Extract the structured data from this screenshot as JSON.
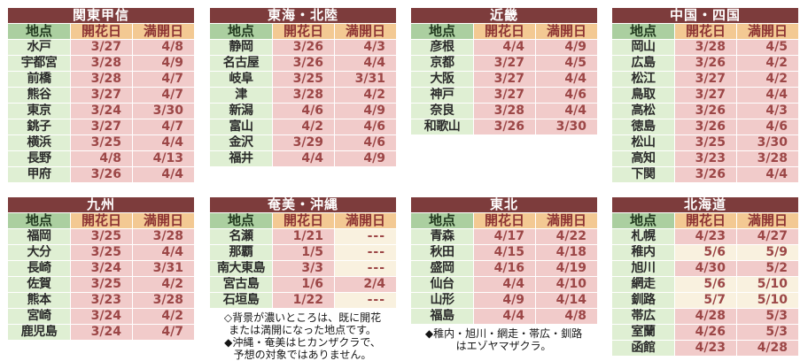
{
  "columns": {
    "location": "地点",
    "flowering": "開花日",
    "full_bloom": "満開日"
  },
  "colors": {
    "region_header_bg": "#7D3C3C",
    "region_header_text": "#FFFFFF",
    "location_header_bg": "#ABCFA0",
    "location_header_text": "#22391F",
    "date_header_bg": "#F3C993",
    "date_header_text": "#8C3333",
    "location_cell_bg": "#DFEFD3",
    "occurred_cell_bg": "#F1CBCA",
    "forecast_cell_bg": "#F9F1DF",
    "date_text": "#9C4747"
  },
  "cell_state_legend": {
    "occurred": "darker pink background = 既に開花または満開になった地点",
    "forecast": "light cream background = forecast date or no data"
  },
  "chart_data": [
    {
      "type": "table",
      "id": "kanto-koshin",
      "title": "関東甲信",
      "grid_position": {
        "row": 1,
        "col": 1
      },
      "columns": [
        "地点",
        "開花日",
        "満開日"
      ],
      "rows": [
        {
          "location": "水戸",
          "flowering": "3/27",
          "full_bloom": "4/8",
          "flowering_state": "occurred",
          "full_bloom_state": "occurred"
        },
        {
          "location": "宇都宮",
          "flowering": "3/28",
          "full_bloom": "4/9",
          "flowering_state": "occurred",
          "full_bloom_state": "occurred"
        },
        {
          "location": "前橋",
          "flowering": "3/28",
          "full_bloom": "4/7",
          "flowering_state": "occurred",
          "full_bloom_state": "occurred"
        },
        {
          "location": "熊谷",
          "flowering": "3/27",
          "full_bloom": "4/7",
          "flowering_state": "occurred",
          "full_bloom_state": "occurred"
        },
        {
          "location": "東京",
          "flowering": "3/24",
          "full_bloom": "3/30",
          "flowering_state": "occurred",
          "full_bloom_state": "occurred"
        },
        {
          "location": "銚子",
          "flowering": "3/27",
          "full_bloom": "4/7",
          "flowering_state": "occurred",
          "full_bloom_state": "occurred"
        },
        {
          "location": "横浜",
          "flowering": "3/25",
          "full_bloom": "4/4",
          "flowering_state": "occurred",
          "full_bloom_state": "occurred"
        },
        {
          "location": "長野",
          "flowering": "4/8",
          "full_bloom": "4/13",
          "flowering_state": "occurred",
          "full_bloom_state": "occurred"
        },
        {
          "location": "甲府",
          "flowering": "3/26",
          "full_bloom": "4/4",
          "flowering_state": "occurred",
          "full_bloom_state": "occurred"
        }
      ],
      "notes": []
    },
    {
      "type": "table",
      "id": "tokai-hokuriku",
      "title": "東海・北陸",
      "grid_position": {
        "row": 1,
        "col": 2
      },
      "columns": [
        "地点",
        "開花日",
        "満開日"
      ],
      "rows": [
        {
          "location": "静岡",
          "flowering": "3/26",
          "full_bloom": "4/3",
          "flowering_state": "occurred",
          "full_bloom_state": "occurred"
        },
        {
          "location": "名古屋",
          "flowering": "3/26",
          "full_bloom": "4/4",
          "flowering_state": "occurred",
          "full_bloom_state": "occurred"
        },
        {
          "location": "岐阜",
          "flowering": "3/25",
          "full_bloom": "3/31",
          "flowering_state": "occurred",
          "full_bloom_state": "occurred"
        },
        {
          "location": "津",
          "flowering": "3/28",
          "full_bloom": "4/2",
          "flowering_state": "occurred",
          "full_bloom_state": "occurred"
        },
        {
          "location": "新潟",
          "flowering": "4/6",
          "full_bloom": "4/9",
          "flowering_state": "occurred",
          "full_bloom_state": "occurred"
        },
        {
          "location": "富山",
          "flowering": "4/2",
          "full_bloom": "4/6",
          "flowering_state": "occurred",
          "full_bloom_state": "occurred"
        },
        {
          "location": "金沢",
          "flowering": "3/29",
          "full_bloom": "4/6",
          "flowering_state": "occurred",
          "full_bloom_state": "occurred"
        },
        {
          "location": "福井",
          "flowering": "4/4",
          "full_bloom": "4/9",
          "flowering_state": "occurred",
          "full_bloom_state": "occurred"
        }
      ],
      "notes": []
    },
    {
      "type": "table",
      "id": "kinki",
      "title": "近畿",
      "grid_position": {
        "row": 1,
        "col": 3
      },
      "columns": [
        "地点",
        "開花日",
        "満開日"
      ],
      "rows": [
        {
          "location": "彦根",
          "flowering": "4/4",
          "full_bloom": "4/9",
          "flowering_state": "occurred",
          "full_bloom_state": "occurred"
        },
        {
          "location": "京都",
          "flowering": "3/27",
          "full_bloom": "4/5",
          "flowering_state": "occurred",
          "full_bloom_state": "occurred"
        },
        {
          "location": "大阪",
          "flowering": "3/27",
          "full_bloom": "4/4",
          "flowering_state": "occurred",
          "full_bloom_state": "occurred"
        },
        {
          "location": "神戸",
          "flowering": "3/27",
          "full_bloom": "4/6",
          "flowering_state": "occurred",
          "full_bloom_state": "occurred"
        },
        {
          "location": "奈良",
          "flowering": "3/28",
          "full_bloom": "4/4",
          "flowering_state": "occurred",
          "full_bloom_state": "occurred"
        },
        {
          "location": "和歌山",
          "flowering": "3/26",
          "full_bloom": "3/30",
          "flowering_state": "occurred",
          "full_bloom_state": "occurred"
        }
      ],
      "notes": []
    },
    {
      "type": "table",
      "id": "chugoku-shikoku",
      "title": "中国・四国",
      "grid_position": {
        "row": 1,
        "col": 4
      },
      "columns": [
        "地点",
        "開花日",
        "満開日"
      ],
      "rows": [
        {
          "location": "岡山",
          "flowering": "3/28",
          "full_bloom": "4/5",
          "flowering_state": "occurred",
          "full_bloom_state": "occurred"
        },
        {
          "location": "広島",
          "flowering": "3/26",
          "full_bloom": "4/2",
          "flowering_state": "occurred",
          "full_bloom_state": "occurred"
        },
        {
          "location": "松江",
          "flowering": "3/27",
          "full_bloom": "4/2",
          "flowering_state": "occurred",
          "full_bloom_state": "occurred"
        },
        {
          "location": "鳥取",
          "flowering": "3/27",
          "full_bloom": "4/4",
          "flowering_state": "occurred",
          "full_bloom_state": "occurred"
        },
        {
          "location": "高松",
          "flowering": "3/26",
          "full_bloom": "4/3",
          "flowering_state": "occurred",
          "full_bloom_state": "occurred"
        },
        {
          "location": "徳島",
          "flowering": "3/26",
          "full_bloom": "4/6",
          "flowering_state": "occurred",
          "full_bloom_state": "occurred"
        },
        {
          "location": "松山",
          "flowering": "3/25",
          "full_bloom": "3/30",
          "flowering_state": "occurred",
          "full_bloom_state": "occurred"
        },
        {
          "location": "高知",
          "flowering": "3/23",
          "full_bloom": "3/28",
          "flowering_state": "occurred",
          "full_bloom_state": "occurred"
        },
        {
          "location": "下関",
          "flowering": "3/26",
          "full_bloom": "4/4",
          "flowering_state": "occurred",
          "full_bloom_state": "occurred"
        }
      ],
      "notes": []
    },
    {
      "type": "table",
      "id": "kyushu",
      "title": "九州",
      "grid_position": {
        "row": 2,
        "col": 1
      },
      "columns": [
        "地点",
        "開花日",
        "満開日"
      ],
      "rows": [
        {
          "location": "福岡",
          "flowering": "3/25",
          "full_bloom": "3/28",
          "flowering_state": "occurred",
          "full_bloom_state": "occurred"
        },
        {
          "location": "大分",
          "flowering": "3/25",
          "full_bloom": "4/4",
          "flowering_state": "occurred",
          "full_bloom_state": "occurred"
        },
        {
          "location": "長崎",
          "flowering": "3/24",
          "full_bloom": "3/31",
          "flowering_state": "occurred",
          "full_bloom_state": "occurred"
        },
        {
          "location": "佐賀",
          "flowering": "3/25",
          "full_bloom": "4/2",
          "flowering_state": "occurred",
          "full_bloom_state": "occurred"
        },
        {
          "location": "熊本",
          "flowering": "3/23",
          "full_bloom": "3/28",
          "flowering_state": "occurred",
          "full_bloom_state": "occurred"
        },
        {
          "location": "宮崎",
          "flowering": "3/24",
          "full_bloom": "4/2",
          "flowering_state": "occurred",
          "full_bloom_state": "occurred"
        },
        {
          "location": "鹿児島",
          "flowering": "3/24",
          "full_bloom": "4/7",
          "flowering_state": "occurred",
          "full_bloom_state": "occurred"
        }
      ],
      "notes": []
    },
    {
      "type": "table",
      "id": "amami-okinawa",
      "title": "奄美・沖縄",
      "grid_position": {
        "row": 2,
        "col": 2
      },
      "columns": [
        "地点",
        "開花日",
        "満開日"
      ],
      "rows": [
        {
          "location": "名瀬",
          "flowering": "1/21",
          "full_bloom": "---",
          "flowering_state": "occurred",
          "full_bloom_state": "forecast"
        },
        {
          "location": "那覇",
          "flowering": "1/5",
          "full_bloom": "---",
          "flowering_state": "occurred",
          "full_bloom_state": "forecast"
        },
        {
          "location": "南大東島",
          "flowering": "3/3",
          "full_bloom": "---",
          "flowering_state": "occurred",
          "full_bloom_state": "forecast"
        },
        {
          "location": "宮古島",
          "flowering": "1/6",
          "full_bloom": "2/4",
          "flowering_state": "occurred",
          "full_bloom_state": "occurred"
        },
        {
          "location": "石垣島",
          "flowering": "1/22",
          "full_bloom": "---",
          "flowering_state": "occurred",
          "full_bloom_state": "forecast"
        }
      ],
      "notes": [
        "◇背景が濃いところは、既に開花",
        "または満開になった地点です。",
        "◆沖縄・奄美はヒカンザクラで、",
        "予想の対象ではありません。"
      ]
    },
    {
      "type": "table",
      "id": "tohoku",
      "title": "東北",
      "grid_position": {
        "row": 2,
        "col": 3
      },
      "columns": [
        "地点",
        "開花日",
        "満開日"
      ],
      "rows": [
        {
          "location": "青森",
          "flowering": "4/17",
          "full_bloom": "4/22",
          "flowering_state": "occurred",
          "full_bloom_state": "occurred"
        },
        {
          "location": "秋田",
          "flowering": "4/15",
          "full_bloom": "4/18",
          "flowering_state": "occurred",
          "full_bloom_state": "occurred"
        },
        {
          "location": "盛岡",
          "flowering": "4/16",
          "full_bloom": "4/19",
          "flowering_state": "occurred",
          "full_bloom_state": "occurred"
        },
        {
          "location": "仙台",
          "flowering": "4/4",
          "full_bloom": "4/10",
          "flowering_state": "occurred",
          "full_bloom_state": "occurred"
        },
        {
          "location": "山形",
          "flowering": "4/9",
          "full_bloom": "4/14",
          "flowering_state": "occurred",
          "full_bloom_state": "occurred"
        },
        {
          "location": "福島",
          "flowering": "4/4",
          "full_bloom": "4/8",
          "flowering_state": "occurred",
          "full_bloom_state": "occurred"
        }
      ],
      "notes": [
        "◆稚内・旭川・網走・帯広・釧路",
        "はエゾヤマザクラ。"
      ]
    },
    {
      "type": "table",
      "id": "hokkaido",
      "title": "北海道",
      "grid_position": {
        "row": 2,
        "col": 4
      },
      "columns": [
        "地点",
        "開花日",
        "満開日"
      ],
      "rows": [
        {
          "location": "札幌",
          "flowering": "4/23",
          "full_bloom": "4/27",
          "flowering_state": "occurred",
          "full_bloom_state": "occurred"
        },
        {
          "location": "稚内",
          "flowering": "5/6",
          "full_bloom": "5/9",
          "flowering_state": "forecast",
          "full_bloom_state": "forecast"
        },
        {
          "location": "旭川",
          "flowering": "4/30",
          "full_bloom": "5/2",
          "flowering_state": "occurred",
          "full_bloom_state": "occurred"
        },
        {
          "location": "網走",
          "flowering": "5/6",
          "full_bloom": "5/10",
          "flowering_state": "forecast",
          "full_bloom_state": "forecast"
        },
        {
          "location": "釧路",
          "flowering": "5/7",
          "full_bloom": "5/10",
          "flowering_state": "forecast",
          "full_bloom_state": "forecast"
        },
        {
          "location": "帯広",
          "flowering": "4/28",
          "full_bloom": "5/3",
          "flowering_state": "occurred",
          "full_bloom_state": "occurred"
        },
        {
          "location": "室蘭",
          "flowering": "4/26",
          "full_bloom": "5/3",
          "flowering_state": "occurred",
          "full_bloom_state": "occurred"
        },
        {
          "location": "函館",
          "flowering": "4/23",
          "full_bloom": "4/28",
          "flowering_state": "occurred",
          "full_bloom_state": "occurred"
        }
      ],
      "notes": []
    }
  ]
}
